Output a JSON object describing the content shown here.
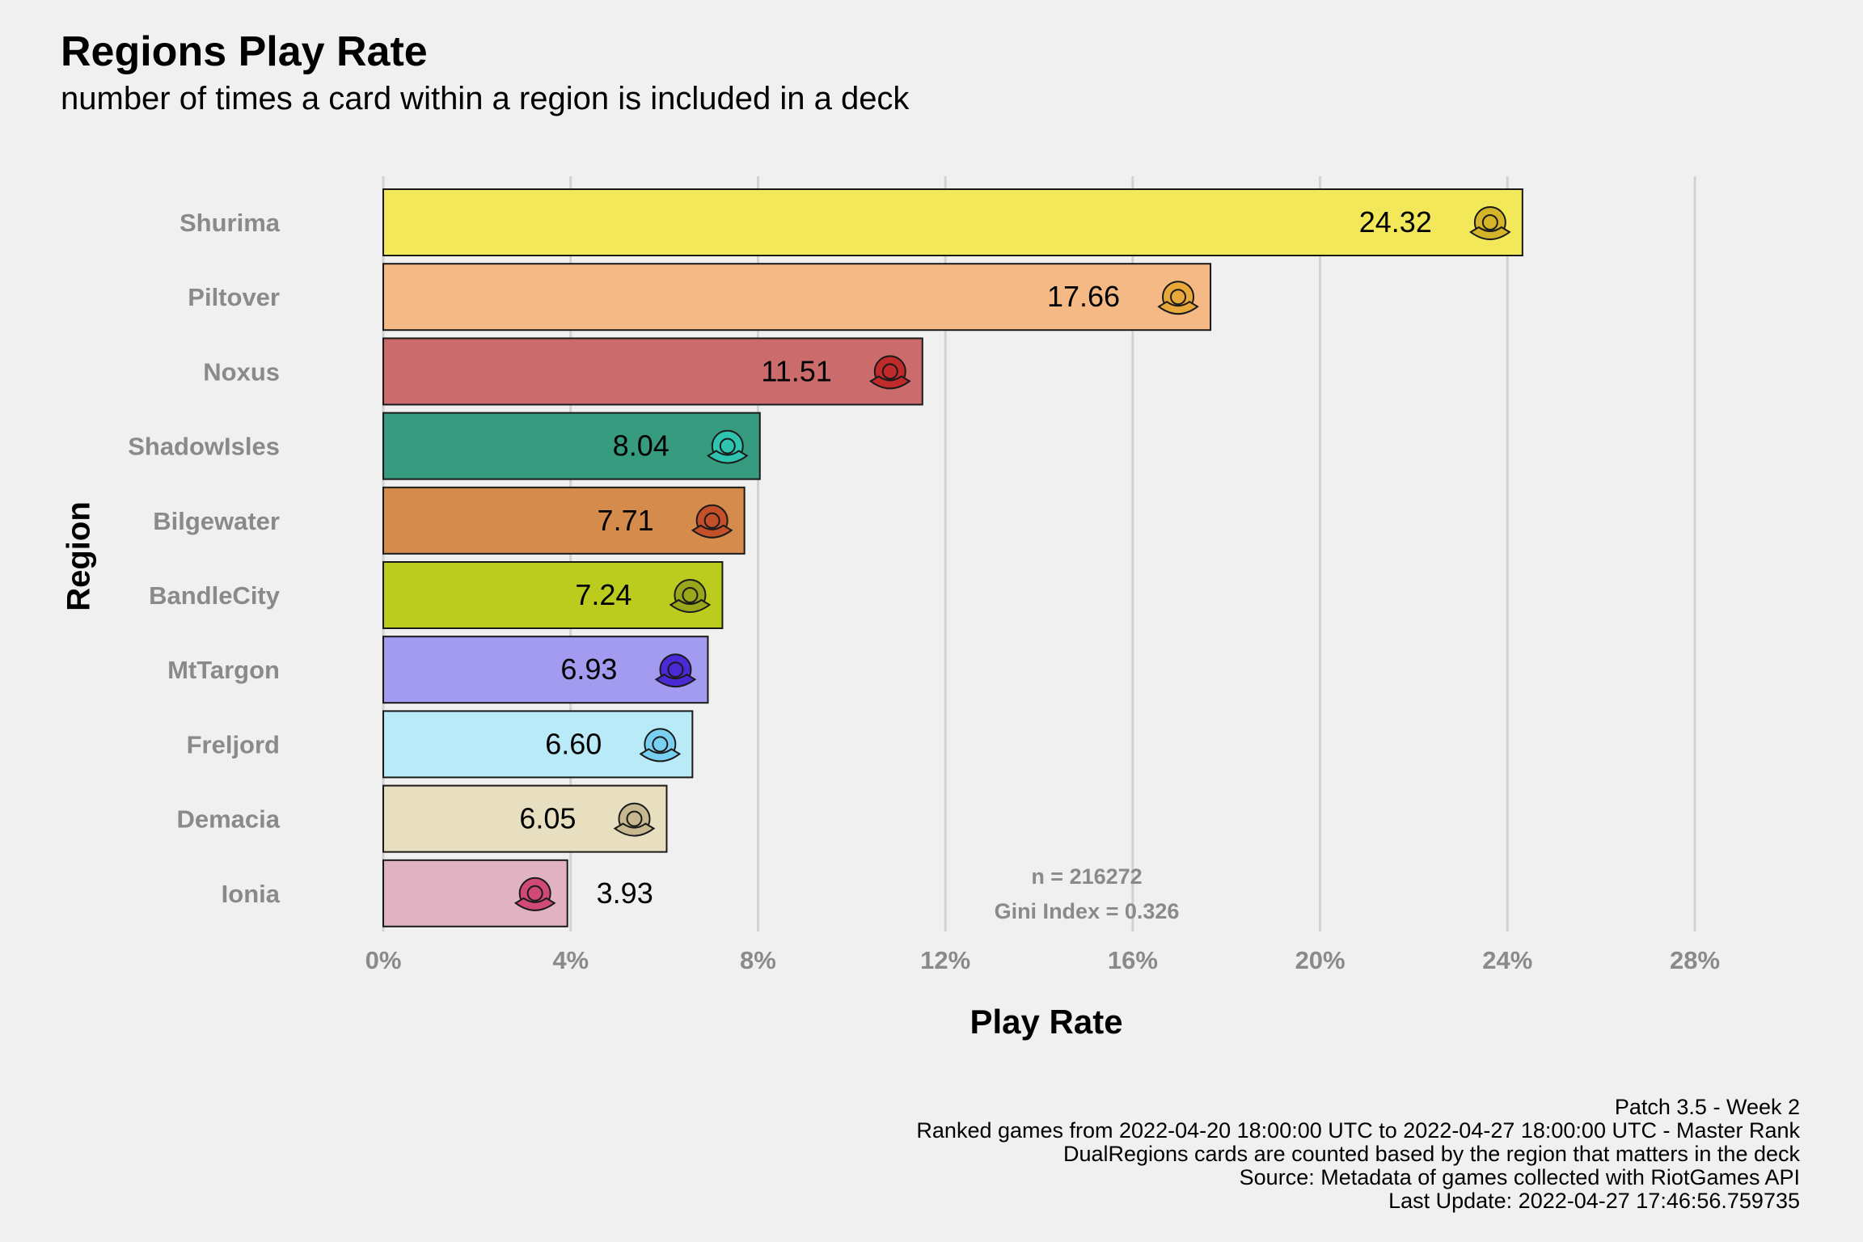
{
  "header": {
    "title": "Regions Play Rate",
    "subtitle": "number of times a card within a region is included in a deck"
  },
  "chart_data": {
    "type": "bar",
    "orientation": "horizontal",
    "title": "Regions Play Rate",
    "subtitle": "number of times a card within a region is included in a deck",
    "xlabel": "Play Rate",
    "ylabel": "Region",
    "xlim": [
      0,
      28
    ],
    "x_ticks": [
      0,
      4,
      8,
      12,
      16,
      20,
      24,
      28
    ],
    "x_tick_labels": [
      "0%",
      "4%",
      "8%",
      "12%",
      "16%",
      "20%",
      "24%",
      "28%"
    ],
    "grid": "vertical major gridlines",
    "categories": [
      "Shurima",
      "Piltover",
      "Noxus",
      "ShadowIsles",
      "Bilgewater",
      "BandleCity",
      "MtTargon",
      "Freljord",
      "Demacia",
      "Ionia"
    ],
    "values": [
      24.32,
      17.66,
      11.51,
      8.04,
      7.71,
      7.24,
      6.93,
      6.6,
      6.05,
      3.93
    ],
    "value_labels": [
      "24.32",
      "17.66",
      "11.51",
      "8.04",
      "7.71",
      "7.24",
      "6.93",
      "6.60",
      "6.05",
      "3.93"
    ],
    "colors": [
      "#f2e85a",
      "#f5b985",
      "#cc6b6b",
      "#379b80",
      "#d48b4c",
      "#bbcc1f",
      "#a29bef",
      "#b8ebf7",
      "#e8dec0",
      "#e0b2c2"
    ],
    "icon_colors": [
      "#d4b52a",
      "#e8a83a",
      "#c02a2a",
      "#2ec4b0",
      "#c4502a",
      "#98a81a",
      "#4a2ad4",
      "#7ad0f0",
      "#c8b890",
      "#d04a78"
    ],
    "icons": [
      "shurima-emblem-icon",
      "piltover-emblem-icon",
      "noxus-emblem-icon",
      "shadowisles-emblem-icon",
      "bilgewater-emblem-icon",
      "bandlecity-emblem-icon",
      "mttargon-emblem-icon",
      "freljord-emblem-icon",
      "demacia-emblem-icon",
      "ionia-emblem-icon"
    ],
    "annotations": [
      "n = 216272",
      "Gini Index = 0.326"
    ]
  },
  "footer": {
    "lines": [
      "Patch 3.5 - Week 2",
      "Ranked games from 2022-04-20 18:00:00 UTC to 2022-04-27 18:00:00 UTC - Master Rank",
      "DualRegions cards are counted based by the region that matters in the deck",
      "Source: Metadata of games collected with RiotGames API",
      "Last Update: 2022-04-27 17:46:56.759735"
    ]
  }
}
